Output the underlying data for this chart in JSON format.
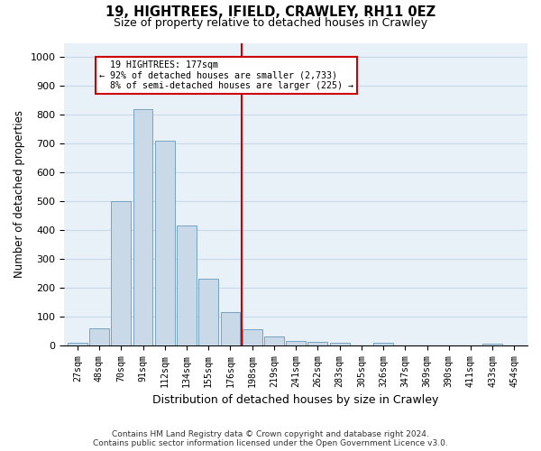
{
  "title": "19, HIGHTREES, IFIELD, CRAWLEY, RH11 0EZ",
  "subtitle": "Size of property relative to detached houses in Crawley",
  "xlabel": "Distribution of detached houses by size in Crawley",
  "ylabel": "Number of detached properties",
  "footer_line1": "Contains HM Land Registry data © Crown copyright and database right 2024.",
  "footer_line2": "Contains public sector information licensed under the Open Government Licence v3.0.",
  "bar_labels": [
    "27sqm",
    "48sqm",
    "70sqm",
    "91sqm",
    "112sqm",
    "134sqm",
    "155sqm",
    "176sqm",
    "198sqm",
    "219sqm",
    "241sqm",
    "262sqm",
    "283sqm",
    "305sqm",
    "326sqm",
    "347sqm",
    "369sqm",
    "390sqm",
    "411sqm",
    "433sqm",
    "454sqm"
  ],
  "bar_values": [
    10,
    60,
    500,
    820,
    710,
    415,
    230,
    115,
    57,
    32,
    14,
    11,
    10,
    0,
    10,
    0,
    0,
    0,
    0,
    7,
    0
  ],
  "bar_color": "#c9d9e8",
  "bar_edgecolor": "#6699bb",
  "highlight_label": "19 HIGHTREES: 177sqm",
  "highlight_pct_smaller": 92,
  "highlight_count_smaller": 2733,
  "highlight_pct_larger": 8,
  "highlight_count_larger": 225,
  "vline_color": "#cc0000",
  "annotation_box_edgecolor": "#cc0000",
  "grid_color": "#c8d8e8",
  "background_color": "#e8f0f8",
  "ylim": [
    0,
    1050
  ],
  "yticks": [
    0,
    100,
    200,
    300,
    400,
    500,
    600,
    700,
    800,
    900,
    1000
  ]
}
